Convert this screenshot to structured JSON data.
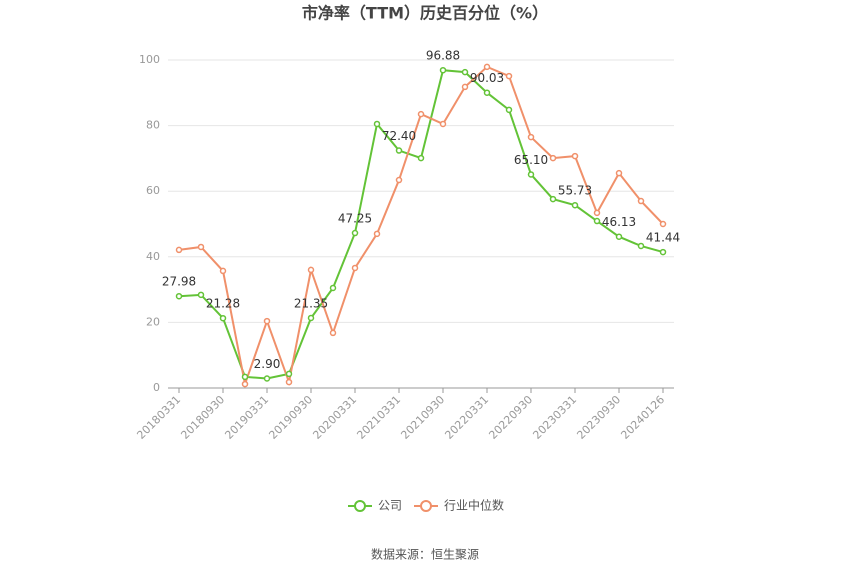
{
  "chart_data": {
    "type": "line",
    "title": "市净率（TTM）历史百分位（%）",
    "source": "数据来源：恒生聚源",
    "categories": [
      "20180331",
      null,
      "20180930",
      null,
      "20190331",
      null,
      "20190930",
      null,
      "20200331",
      null,
      "20210331",
      null,
      "20210930",
      null,
      "20220331",
      null,
      "20220930",
      null,
      "20230331",
      null,
      "20230930",
      null,
      "20240126"
    ],
    "series": [
      {
        "name": "公司",
        "color": "#63c337",
        "values": [
          27.98,
          28.4,
          21.28,
          3.4,
          2.9,
          4.3,
          21.35,
          30.5,
          47.25,
          80.5,
          72.4,
          70.1,
          96.88,
          96.3,
          90.03,
          84.8,
          65.1,
          57.6,
          55.73,
          50.9,
          46.13,
          43.3,
          41.44
        ],
        "value_labels": [
          "27.98",
          null,
          "21.28",
          null,
          "2.90",
          null,
          "21.35",
          null,
          "47.25",
          null,
          "72.40",
          null,
          "96.88",
          null,
          "90.03",
          null,
          "65.10",
          null,
          "55.73",
          null,
          "46.13",
          null,
          "41.44"
        ]
      },
      {
        "name": "行业中位数",
        "color": "#f0906a",
        "values": [
          42.1,
          43.0,
          35.7,
          1.2,
          20.4,
          1.8,
          36.0,
          16.8,
          36.6,
          47.0,
          63.4,
          83.5,
          80.5,
          91.8,
          97.9,
          95.1,
          76.5,
          70.1,
          70.7,
          53.4,
          65.5,
          57.0,
          50.0
        ]
      }
    ],
    "ylim": [
      0,
      100
    ],
    "yticks": [
      0,
      20,
      40,
      60,
      80,
      100
    ],
    "grid": true,
    "legend": "bottom"
  }
}
